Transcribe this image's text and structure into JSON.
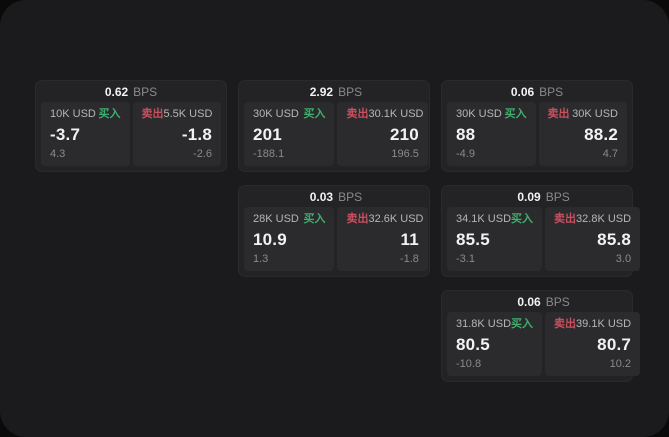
{
  "units": {
    "bps": "BPS"
  },
  "labels": {
    "buy": "买入",
    "sell": "卖出"
  },
  "colors": {
    "outer-bg": "#0a0a0b",
    "panel-bg": "#1b1b1d",
    "card-bg": "#232326",
    "pane-bg": "#2b2b2e",
    "text-primary": "#f2f2f2",
    "text-secondary": "#b6b6b8",
    "text-muted": "#8a8a8c",
    "buy-green": "#3fae6e",
    "sell-red": "#c94f5f"
  },
  "cards": [
    {
      "row": 1,
      "col": 1,
      "bps": "0.62",
      "buy": {
        "size": "10K USD",
        "price": "-3.7",
        "sub": "4.3"
      },
      "sell": {
        "size": "5.5K USD",
        "price": "-1.8",
        "sub": "-2.6"
      }
    },
    {
      "row": 1,
      "col": 2,
      "bps": "2.92",
      "buy": {
        "size": "30K USD",
        "price": "201",
        "sub": "-188.1"
      },
      "sell": {
        "size": "30.1K USD",
        "price": "210",
        "sub": "196.5"
      }
    },
    {
      "row": 1,
      "col": 3,
      "bps": "0.06",
      "buy": {
        "size": "30K USD",
        "price": "88",
        "sub": "-4.9"
      },
      "sell": {
        "size": "30K USD",
        "price": "88.2",
        "sub": "4.7"
      }
    },
    {
      "row": 2,
      "col": 2,
      "bps": "0.03",
      "buy": {
        "size": "28K USD",
        "price": "10.9",
        "sub": "1.3"
      },
      "sell": {
        "size": "32.6K USD",
        "price": "11",
        "sub": "-1.8"
      }
    },
    {
      "row": 2,
      "col": 3,
      "bps": "0.09",
      "buy": {
        "size": "34.1K USD",
        "price": "85.5",
        "sub": "-3.1"
      },
      "sell": {
        "size": "32.8K USD",
        "price": "85.8",
        "sub": "3.0"
      }
    },
    {
      "row": 3,
      "col": 3,
      "bps": "0.06",
      "buy": {
        "size": "31.8K USD",
        "price": "80.5",
        "sub": "-10.8"
      },
      "sell": {
        "size": "39.1K USD",
        "price": "80.7",
        "sub": "10.2"
      }
    }
  ]
}
